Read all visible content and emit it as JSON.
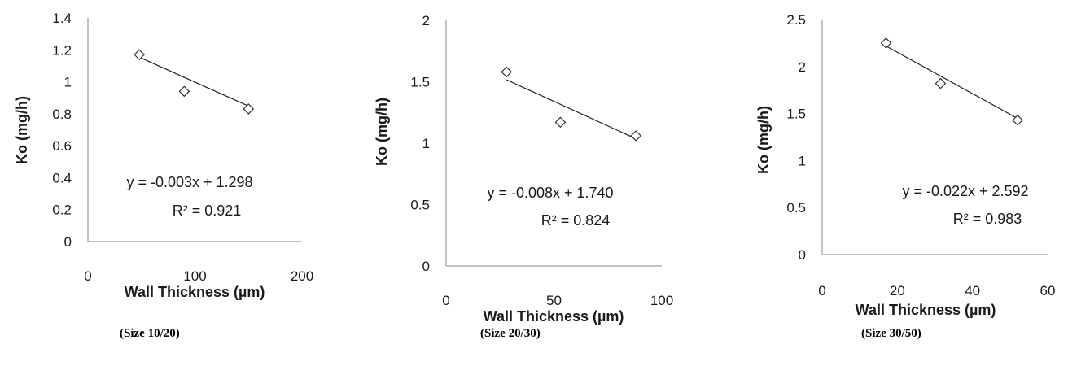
{
  "chart_data": [
    {
      "type": "scatter",
      "title": "",
      "xlabel": "Wall Thickness (µm)",
      "ylabel": "Ko (mg/h)",
      "xlim": [
        0,
        200
      ],
      "ylim": [
        0,
        1.4
      ],
      "x_ticks": [
        "0",
        "100",
        "200"
      ],
      "y_ticks": [
        "0",
        "0.2",
        "0.4",
        "0.6",
        "0.8",
        "1",
        "1.2",
        "1.4"
      ],
      "series": [
        {
          "x": [
            48,
            90,
            150
          ],
          "y": [
            1.17,
            0.94,
            0.83
          ]
        }
      ],
      "trendline": {
        "slope": -0.003,
        "intercept": 1.298,
        "x_range": [
          48,
          150
        ]
      },
      "equation": "y = -0.003x + 1.298",
      "r_squared": "R² = 0.921",
      "caption": "(Size 10/20)"
    },
    {
      "type": "scatter",
      "title": "",
      "xlabel": "Wall Thickness (µm)",
      "ylabel": "Ko (mg/h)",
      "xlim": [
        0,
        100
      ],
      "ylim": [
        0,
        2
      ],
      "x_ticks": [
        "0",
        "50",
        "100"
      ],
      "y_ticks": [
        "0",
        "0.5",
        "1",
        "1.5",
        "2"
      ],
      "series": [
        {
          "x": [
            28,
            53,
            88
          ],
          "y": [
            1.58,
            1.17,
            1.06
          ]
        }
      ],
      "trendline": {
        "slope": -0.008,
        "intercept": 1.74,
        "x_range": [
          28,
          88
        ]
      },
      "equation": "y = -0.008x + 1.740",
      "r_squared": "R² = 0.824",
      "caption": "(Size 20/30)"
    },
    {
      "type": "scatter",
      "title": "",
      "xlabel": "Wall Thickness (µm)",
      "ylabel": "Ko (mg/h)",
      "xlim": [
        0,
        60
      ],
      "ylim": [
        0,
        2.5
      ],
      "x_ticks": [
        "0",
        "20",
        "40",
        "60"
      ],
      "y_ticks": [
        "0",
        "0.5",
        "1",
        "1.5",
        "2",
        "2.5"
      ],
      "series": [
        {
          "x": [
            17,
            31.5,
            52
          ],
          "y": [
            2.25,
            1.82,
            1.43
          ]
        }
      ],
      "trendline": {
        "slope": -0.022,
        "intercept": 2.592,
        "x_range": [
          17,
          52
        ]
      },
      "equation": "y = -0.022x + 2.592",
      "r_squared": "R² = 0.983",
      "caption": "(Size 30/50)"
    }
  ]
}
